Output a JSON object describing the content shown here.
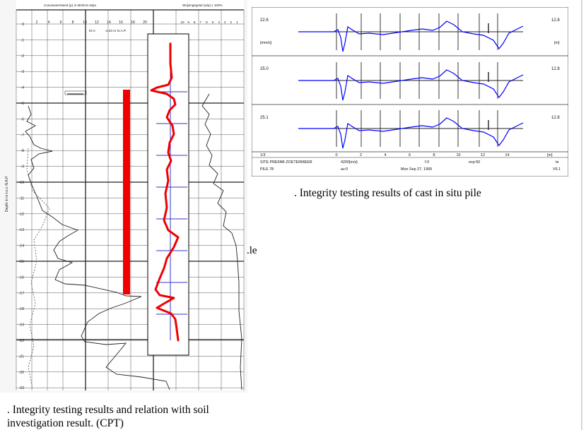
{
  "cpt_chart": {
    "top_axis_left_label": "Conusweerstand (p) in MN/m2=Mpa",
    "top_axis_right_label": "Wrijvingsgetal (w/p) x 100%",
    "cone_ticks": [
      "2",
      "4",
      "6",
      "8",
      "10",
      "12",
      "14",
      "16",
      "18",
      "20"
    ],
    "friction_ticks": [
      "10",
      "9",
      "8",
      "7",
      "6",
      "5",
      "4",
      "3",
      "2",
      "1"
    ],
    "mv_label": "M.V.",
    "nap_label": "-4.33 m  N.A.P.",
    "depth_axis_label": "Depth in m t.o.v. N.A.P.",
    "depth_ticks": [
      "0",
      "-1",
      "-2",
      "-3",
      "-4",
      "-5",
      "-6",
      "-7",
      "-8",
      "-9",
      "-10",
      "-11",
      "-12",
      "-13",
      "-14",
      "-15",
      "-16",
      "-17",
      "-18",
      "-19",
      "-20",
      "-21",
      "-22",
      "-23"
    ]
  },
  "pit_chart": {
    "traces": [
      {
        "left_value": "22.6",
        "right_value": "12.8",
        "left_unit": "[mm/s]",
        "right_unit": "[m]"
      },
      {
        "left_value": "25.0",
        "right_value": "12.8"
      },
      {
        "left_value": "25.1",
        "right_value": "12.8"
      }
    ],
    "x_ticks": [
      "0",
      "2",
      "4",
      "6",
      "8",
      "10",
      "12",
      "14"
    ],
    "x_unit": "[m]",
    "footer": {
      "row1_left": "1/3",
      "row2_left": "SITE PREFAB ZOETERMEER",
      "row2_mid": "4200[m/s]",
      "row2_f": "f:3",
      "row2_exp": "exp:50",
      "row2_right": "te",
      "row3_left": "PILE 78",
      "row3_mid": "av:0",
      "row3_date": "Mon Sep 27, 1999",
      "row3_right": "V6.1"
    }
  },
  "captions": {
    "right": ". Integrity testing results of cast in situ pile",
    "left": ". Integrity testing results and relation with soil investigation result. (CPT)",
    "stray": ".le"
  },
  "colors": {
    "pile_bar": "#ee0000",
    "pit_signal": "#0000ff",
    "grid": "#333333",
    "scale_line": "#3333cc"
  }
}
